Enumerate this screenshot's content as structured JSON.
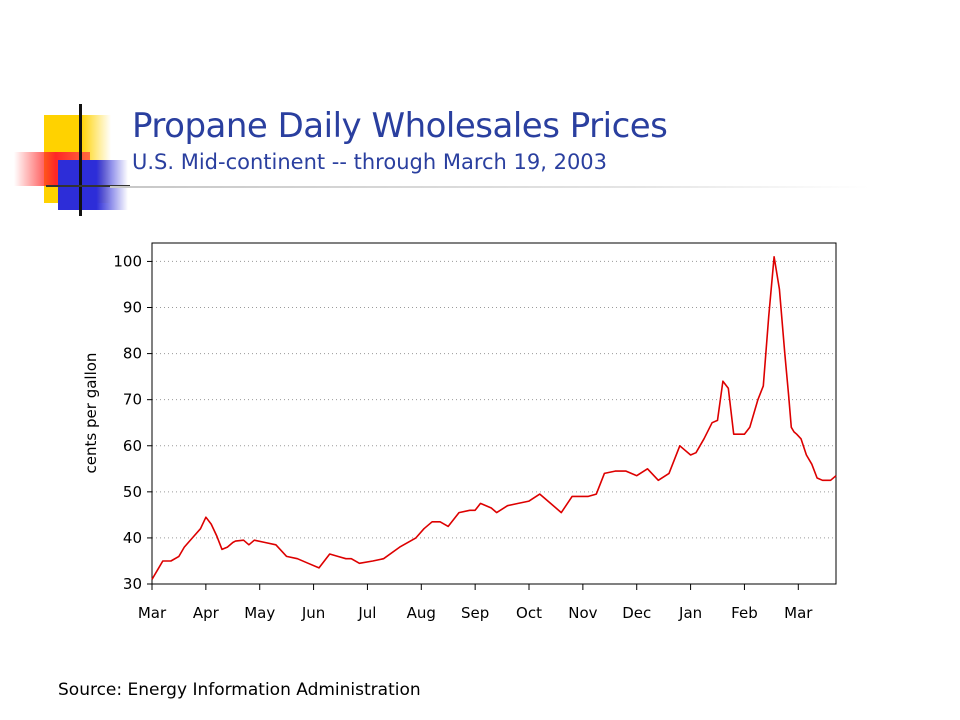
{
  "slide": {
    "title": "Propane Daily Wholesales Prices",
    "subtitle": "U.S. Mid-continent -- through March 19, 2003",
    "source": "Source: Energy Information Administration"
  },
  "chart_data": {
    "type": "line",
    "ylabel": "cents per gallon",
    "xlabel": "",
    "ylim": [
      30,
      104
    ],
    "yticks": [
      30,
      40,
      50,
      60,
      70,
      80,
      90,
      100
    ],
    "xlim": [
      0,
      12.7
    ],
    "xtick_labels": [
      "Mar",
      "Apr",
      "May",
      "Jun",
      "Jul",
      "Aug",
      "Sep",
      "Oct",
      "Nov",
      "Dec",
      "Jan",
      "Feb",
      "Mar"
    ],
    "grid": true,
    "line_color": "#dd0000",
    "series": [
      {
        "x": [
          0,
          0.1,
          0.2,
          0.35,
          0.5,
          0.6,
          0.75,
          0.9,
          1.0,
          1.1,
          1.2,
          1.3,
          1.4,
          1.5,
          1.55,
          1.7,
          1.8,
          1.9,
          2.1,
          2.3,
          2.5,
          2.7,
          2.9,
          3.1,
          3.2,
          3.3,
          3.45,
          3.6,
          3.7,
          3.85,
          4.1,
          4.3,
          4.6,
          4.9,
          5.05,
          5.2,
          5.35,
          5.5,
          5.7,
          5.9,
          6.0,
          6.1,
          6.3,
          6.4,
          6.6,
          6.8,
          7.0,
          7.2,
          7.4,
          7.6,
          7.8,
          8.0,
          8.1,
          8.25,
          8.4,
          8.6,
          8.8,
          9.0,
          9.2,
          9.4,
          9.6,
          9.8,
          10.0,
          10.1,
          10.25,
          10.4,
          10.5,
          10.6,
          10.7,
          10.8,
          10.9,
          11.0,
          11.1,
          11.2,
          11.25,
          11.35,
          11.45,
          11.55,
          11.65,
          11.75,
          11.82,
          11.87,
          11.92,
          11.97,
          12.05,
          12.15,
          12.25,
          12.35,
          12.45,
          12.52,
          12.6,
          12.7
        ],
        "y": [
          31,
          33,
          35,
          35,
          36,
          38,
          40,
          42,
          44.5,
          43,
          40.5,
          37.5,
          38,
          39,
          39.3,
          39.5,
          38.5,
          39.5,
          39,
          38.5,
          36,
          35.5,
          34.5,
          33.5,
          35,
          36.5,
          36,
          35.5,
          35.5,
          34.5,
          35,
          35.5,
          38,
          40,
          42,
          43.5,
          43.5,
          42.5,
          45.5,
          46,
          46,
          47.5,
          46.5,
          45.5,
          47,
          47.5,
          48,
          49.5,
          47.5,
          45.5,
          49,
          49,
          49,
          49.5,
          54,
          54.5,
          54.5,
          53.5,
          55,
          52.5,
          54,
          60,
          58,
          58.5,
          61.5,
          65,
          65.5,
          74,
          72.5,
          62.5,
          62.5,
          62.5,
          64,
          68,
          70,
          73,
          88,
          101,
          94,
          80,
          71,
          64,
          63,
          62.5,
          61.5,
          58,
          56,
          53,
          52.5,
          52.5,
          52.5,
          53.5
        ]
      }
    ]
  }
}
